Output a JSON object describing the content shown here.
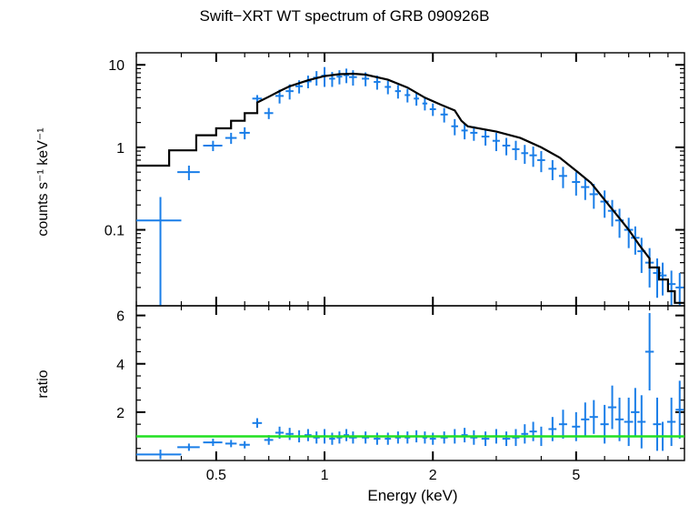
{
  "chart_data": [
    {
      "type": "scatter",
      "panel": "spectrum",
      "title": "Swift−XRT WT spectrum of GRB 090926B",
      "ylabel": "counts s⁻¹ keV⁻¹",
      "xlabel": "Energy (keV)",
      "xscale": "log",
      "yscale": "log",
      "xlim": [
        0.3,
        10
      ],
      "ylim": [
        0.012,
        14
      ],
      "xticks": [
        0.5,
        1,
        2,
        5
      ],
      "xtick_labels": [
        "0.5",
        "1",
        "2",
        "5"
      ],
      "yticks": [
        0.1,
        1,
        10
      ],
      "ytick_labels": [
        "0.1",
        "1",
        "10"
      ],
      "data_color": "#1a7ee8",
      "model_color": "#000000",
      "data": {
        "x": [
          0.35,
          0.42,
          0.49,
          0.55,
          0.6,
          0.65,
          0.7,
          0.75,
          0.8,
          0.85,
          0.9,
          0.95,
          1.0,
          1.05,
          1.1,
          1.15,
          1.2,
          1.3,
          1.4,
          1.5,
          1.6,
          1.7,
          1.8,
          1.9,
          2.0,
          2.15,
          2.3,
          2.45,
          2.6,
          2.8,
          3.0,
          3.2,
          3.4,
          3.6,
          3.8,
          4.0,
          4.3,
          4.6,
          5.0,
          5.3,
          5.6,
          6.0,
          6.3,
          6.6,
          7.0,
          7.3,
          7.6,
          8.0,
          8.4,
          8.7,
          9.2,
          9.7
        ],
        "xerr": [
          0.05,
          0.03,
          0.03,
          0.02,
          0.02,
          0.02,
          0.02,
          0.02,
          0.02,
          0.02,
          0.02,
          0.02,
          0.02,
          0.02,
          0.02,
          0.02,
          0.03,
          0.03,
          0.03,
          0.03,
          0.03,
          0.03,
          0.03,
          0.03,
          0.04,
          0.05,
          0.05,
          0.05,
          0.06,
          0.07,
          0.07,
          0.08,
          0.08,
          0.08,
          0.09,
          0.1,
          0.11,
          0.12,
          0.13,
          0.14,
          0.15,
          0.16,
          0.17,
          0.18,
          0.2,
          0.2,
          0.2,
          0.22,
          0.22,
          0.22,
          0.25,
          0.25
        ],
        "y": [
          0.13,
          0.5,
          1.05,
          1.3,
          1.5,
          3.9,
          2.6,
          4.2,
          4.8,
          5.5,
          6.3,
          7.0,
          7.4,
          6.8,
          7.2,
          7.5,
          7.1,
          6.8,
          6.2,
          5.4,
          4.8,
          4.3,
          3.9,
          3.4,
          2.9,
          2.5,
          1.8,
          1.6,
          1.5,
          1.35,
          1.2,
          1.05,
          0.95,
          0.85,
          0.8,
          0.7,
          0.55,
          0.45,
          0.38,
          0.33,
          0.27,
          0.22,
          0.17,
          0.13,
          0.1,
          0.08,
          0.055,
          0.04,
          0.03,
          0.028,
          0.022,
          0.02
        ],
        "yerr": [
          0.12,
          0.1,
          0.15,
          0.2,
          0.25,
          0.4,
          0.4,
          0.8,
          1.0,
          1.0,
          1.1,
          1.4,
          2.0,
          1.4,
          1.4,
          1.5,
          1.5,
          1.3,
          1.2,
          1.0,
          0.9,
          0.8,
          0.7,
          0.6,
          0.5,
          0.5,
          0.4,
          0.35,
          0.3,
          0.3,
          0.3,
          0.25,
          0.25,
          0.22,
          0.22,
          0.2,
          0.15,
          0.13,
          0.12,
          0.1,
          0.09,
          0.08,
          0.06,
          0.05,
          0.04,
          0.03,
          0.025,
          0.02,
          0.015,
          0.012,
          0.01,
          0.01
        ]
      },
      "model": {
        "x": [
          0.3,
          0.37,
          0.37,
          0.44,
          0.44,
          0.5,
          0.5,
          0.55,
          0.55,
          0.6,
          0.6,
          0.65,
          0.65,
          0.7,
          0.75,
          0.8,
          0.9,
          1.0,
          1.1,
          1.2,
          1.3,
          1.5,
          1.7,
          1.9,
          2.1,
          2.3,
          2.4,
          2.5,
          3.0,
          3.5,
          4.0,
          4.5,
          5.0,
          5.5,
          6.0,
          6.5,
          7.0,
          7.5,
          8.0,
          8.0,
          8.5,
          8.5,
          9.0,
          9.0,
          9.4,
          9.4,
          10.0
        ],
        "y": [
          0.6,
          0.6,
          0.92,
          0.92,
          1.4,
          1.4,
          1.7,
          1.7,
          2.1,
          2.1,
          2.6,
          2.6,
          3.5,
          4.1,
          4.8,
          5.5,
          6.5,
          7.3,
          7.7,
          7.8,
          7.6,
          6.6,
          5.3,
          4.0,
          3.3,
          2.8,
          2.1,
          1.8,
          1.55,
          1.3,
          1.0,
          0.75,
          0.52,
          0.37,
          0.23,
          0.15,
          0.1,
          0.065,
          0.045,
          0.035,
          0.035,
          0.025,
          0.025,
          0.018,
          0.018,
          0.013,
          0.013
        ]
      }
    },
    {
      "type": "scatter",
      "panel": "ratio",
      "ylabel": "ratio",
      "xlabel": "Energy (keV)",
      "xscale": "log",
      "yscale": "linear",
      "xlim": [
        0.3,
        10
      ],
      "ylim": [
        0,
        6.4
      ],
      "xticks": [
        0.5,
        1,
        2,
        5
      ],
      "xtick_labels": [
        "0.5",
        "1",
        "2",
        "5"
      ],
      "yticks": [
        2,
        4,
        6
      ],
      "ytick_labels": [
        "2",
        "4",
        "6"
      ],
      "reference_line": 1,
      "reference_color": "#22e022",
      "data_color": "#1a7ee8",
      "data": {
        "x": [
          0.35,
          0.42,
          0.49,
          0.55,
          0.6,
          0.65,
          0.7,
          0.75,
          0.8,
          0.85,
          0.9,
          0.95,
          1.0,
          1.05,
          1.1,
          1.15,
          1.2,
          1.3,
          1.4,
          1.5,
          1.6,
          1.7,
          1.8,
          1.9,
          2.0,
          2.15,
          2.3,
          2.45,
          2.6,
          2.8,
          3.0,
          3.2,
          3.4,
          3.6,
          3.8,
          4.0,
          4.3,
          4.6,
          5.0,
          5.3,
          5.6,
          6.0,
          6.3,
          6.6,
          7.0,
          7.3,
          7.6,
          8.0,
          8.4,
          8.7,
          9.2,
          9.7
        ],
        "xerr": [
          0.05,
          0.03,
          0.03,
          0.02,
          0.02,
          0.02,
          0.02,
          0.02,
          0.02,
          0.02,
          0.02,
          0.02,
          0.02,
          0.02,
          0.02,
          0.02,
          0.03,
          0.03,
          0.03,
          0.03,
          0.03,
          0.03,
          0.03,
          0.03,
          0.04,
          0.05,
          0.05,
          0.05,
          0.06,
          0.07,
          0.07,
          0.08,
          0.08,
          0.08,
          0.09,
          0.1,
          0.11,
          0.12,
          0.13,
          0.14,
          0.15,
          0.16,
          0.17,
          0.18,
          0.2,
          0.2,
          0.2,
          0.22,
          0.22,
          0.22,
          0.25,
          0.25
        ],
        "y": [
          0.25,
          0.55,
          0.75,
          0.7,
          0.65,
          1.55,
          0.85,
          1.15,
          1.1,
          1.0,
          1.05,
          0.95,
          1.0,
          0.9,
          0.95,
          1.05,
          0.95,
          0.95,
          0.9,
          0.9,
          0.95,
          0.95,
          1.0,
          0.95,
          0.9,
          0.95,
          1.0,
          1.05,
          0.95,
          0.9,
          1.0,
          0.9,
          0.95,
          1.1,
          1.2,
          1.0,
          1.3,
          1.5,
          1.4,
          1.7,
          1.8,
          1.5,
          2.2,
          1.7,
          1.6,
          2.0,
          1.6,
          4.5,
          1.5,
          1.0,
          1.6,
          2.1
        ],
        "yerr": [
          0.2,
          0.15,
          0.15,
          0.15,
          0.15,
          0.2,
          0.2,
          0.25,
          0.25,
          0.25,
          0.25,
          0.25,
          0.3,
          0.25,
          0.25,
          0.25,
          0.25,
          0.25,
          0.25,
          0.25,
          0.25,
          0.25,
          0.25,
          0.25,
          0.25,
          0.25,
          0.3,
          0.3,
          0.3,
          0.3,
          0.3,
          0.3,
          0.35,
          0.4,
          0.4,
          0.4,
          0.5,
          0.6,
          0.6,
          0.7,
          0.7,
          0.8,
          0.9,
          0.9,
          1.0,
          1.0,
          1.1,
          1.6,
          1.1,
          0.6,
          1.0,
          1.2
        ]
      }
    }
  ]
}
